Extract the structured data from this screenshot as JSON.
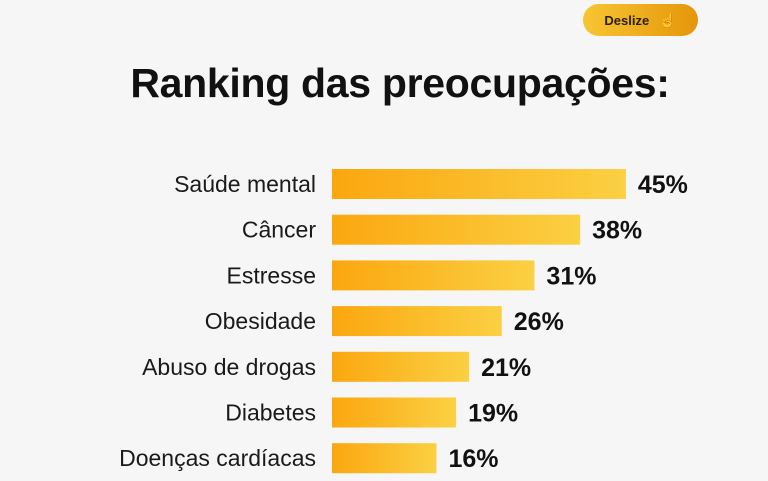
{
  "button": {
    "label": "Deslize",
    "icon": "hand-pointer-icon"
  },
  "chart_data": {
    "type": "bar",
    "orientation": "horizontal",
    "title": "Ranking das preocupações:",
    "categories": [
      "Saúde mental",
      "Câncer",
      "Estresse",
      "Obesidade",
      "Abuso de drogas",
      "Diabetes",
      "Doenças cardíacas"
    ],
    "values": [
      45,
      38,
      31,
      26,
      21,
      19,
      16
    ],
    "value_labels": [
      "45%",
      "38%",
      "31%",
      "26%",
      "21%",
      "19%",
      "16%"
    ],
    "unit": "%",
    "grid": false,
    "colors": {
      "bar_start": "#fba70f",
      "bar_end": "#fbd043"
    }
  }
}
